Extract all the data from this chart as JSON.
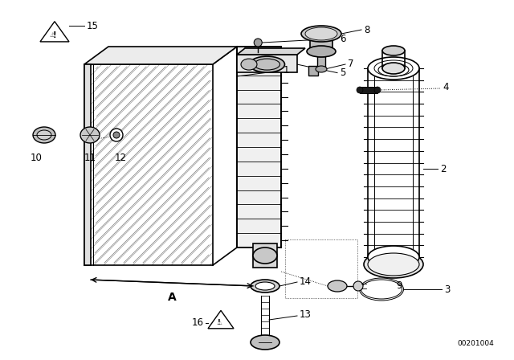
{
  "bg_color": "#ffffff",
  "line_color": "#000000",
  "part_id": "00201004",
  "white_bg": "#ffffff",
  "light_gray": "#e8e8e8",
  "mid_gray": "#d0d0d0"
}
